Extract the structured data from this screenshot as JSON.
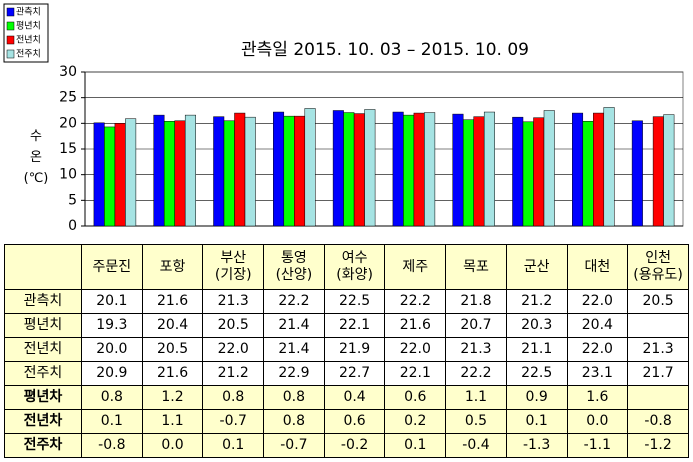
{
  "chart_data": {
    "type": "bar",
    "title": "관측일 2015. 10. 03 – 2015. 10. 09",
    "y_label": "수\n온\n(℃)",
    "categories": [
      "주문진",
      "포항",
      "부산\n(기장)",
      "통영\n(산양)",
      "여수\n(화양)",
      "제주",
      "목포",
      "군산",
      "대천",
      "인천\n(용유도)"
    ],
    "series": [
      {
        "name": "관측치",
        "color": "#0000ff",
        "values": [
          20.1,
          21.6,
          21.3,
          22.2,
          22.5,
          22.2,
          21.8,
          21.2,
          22.0,
          20.5
        ]
      },
      {
        "name": "평년치",
        "color": "#00ff00",
        "values": [
          19.3,
          20.4,
          20.5,
          21.4,
          22.1,
          21.6,
          20.7,
          20.3,
          20.4,
          null
        ]
      },
      {
        "name": "전년치",
        "color": "#ff0000",
        "values": [
          20.0,
          20.5,
          22.0,
          21.4,
          21.9,
          22.0,
          21.3,
          21.1,
          22.0,
          21.3
        ]
      },
      {
        "name": "전주치",
        "color": "#a6e3e3",
        "values": [
          20.9,
          21.6,
          21.2,
          22.9,
          22.7,
          22.1,
          22.2,
          22.5,
          23.1,
          21.7
        ]
      }
    ],
    "ylim": [
      0,
      30
    ],
    "yticks": [
      0,
      5,
      10,
      15,
      20,
      25,
      30
    ],
    "grid": true
  },
  "table": {
    "rows": [
      {
        "label": "관측치",
        "cells": [
          "20.1",
          "21.6",
          "21.3",
          "22.2",
          "22.5",
          "22.2",
          "21.8",
          "21.2",
          "22.0",
          "20.5"
        ]
      },
      {
        "label": "평년치",
        "cells": [
          "19.3",
          "20.4",
          "20.5",
          "21.4",
          "22.1",
          "21.6",
          "20.7",
          "20.3",
          "20.4",
          null
        ]
      },
      {
        "label": "전년치",
        "cells": [
          "20.0",
          "20.5",
          "22.0",
          "21.4",
          "21.9",
          "22.0",
          "21.3",
          "21.1",
          "22.0",
          "21.3"
        ]
      },
      {
        "label": "전주치",
        "cells": [
          "20.9",
          "21.6",
          "21.2",
          "22.9",
          "22.7",
          "22.1",
          "22.2",
          "22.5",
          "23.1",
          "21.7"
        ]
      },
      {
        "label": "평년차",
        "cells": [
          "0.8",
          "1.2",
          "0.8",
          "0.8",
          "0.4",
          "0.6",
          "1.1",
          "0.9",
          "1.6",
          null
        ]
      },
      {
        "label": "전년차",
        "cells": [
          "0.1",
          "1.1",
          "-0.7",
          "0.8",
          "0.6",
          "0.2",
          "0.5",
          "0.1",
          "0.0",
          "-0.8"
        ]
      },
      {
        "label": "전주차",
        "cells": [
          "-0.8",
          "0.0",
          "0.1",
          "-0.7",
          "-0.2",
          "0.1",
          "-0.4",
          "-1.3",
          "-1.1",
          "-1.2"
        ]
      }
    ]
  }
}
